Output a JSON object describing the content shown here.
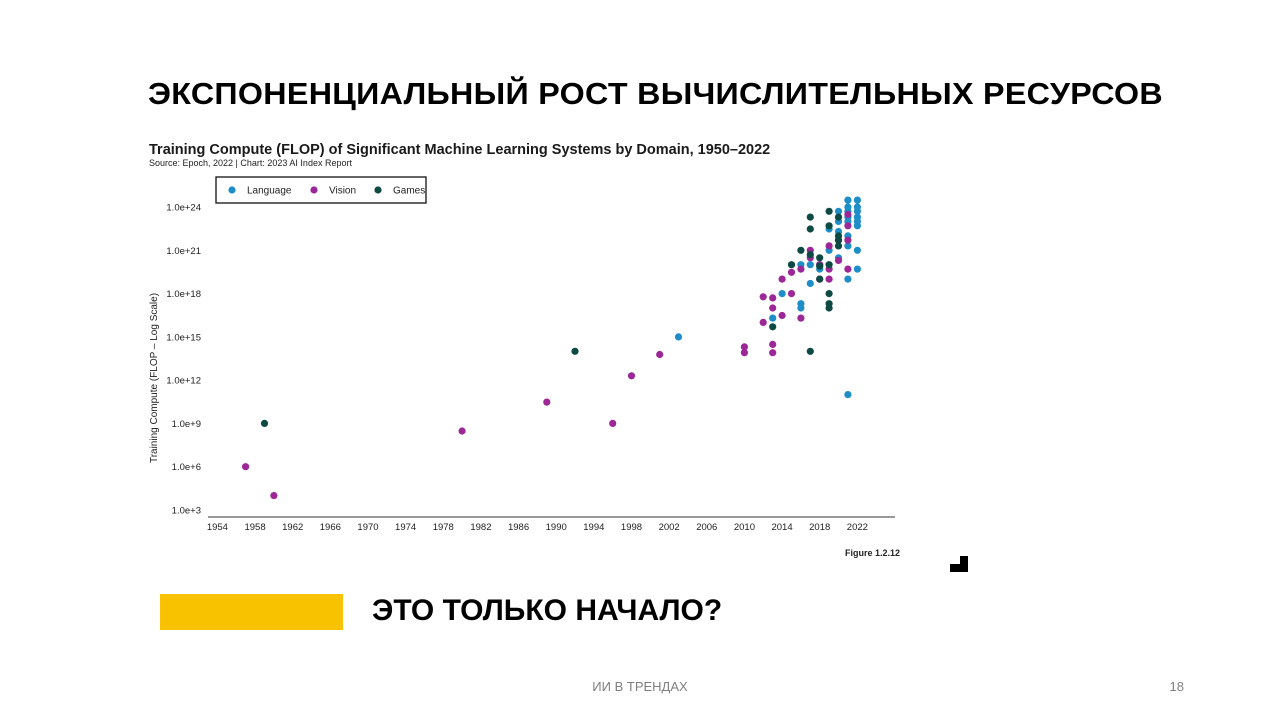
{
  "slide": {
    "title": "ЭКСПОНЕНЦИАЛЬНЫЙ РОСТ ВЫЧИСЛИТЕЛЬНЫХ РЕСУРСОВ",
    "subtitle": "ЭТО ТОЛЬКО НАЧАЛО?",
    "footer": "ИИ В ТРЕНДАХ",
    "page_number": "18",
    "accent_color": "#f9c200"
  },
  "chart_data": {
    "type": "scatter",
    "title": "Training Compute (FLOP) of Significant Machine Learning Systems by Domain, 1950–2022",
    "subtitle": "Source: Epoch, 2022 | Chart: 2023 AI Index Report",
    "ylabel": "Training Compute (FLOP – Log Scale)",
    "xlabel": "",
    "figure_label": "Figure 1.2.12",
    "y_scale": "log",
    "xlim": [
      1953,
      2026
    ],
    "ylim": [
      1000.0,
      1e+24
    ],
    "x_ticks": [
      "1954",
      "1958",
      "1962",
      "1966",
      "1970",
      "1974",
      "1978",
      "1982",
      "1986",
      "1990",
      "1994",
      "1998",
      "2002",
      "2006",
      "2010",
      "2014",
      "2018",
      "2022"
    ],
    "y_ticks": [
      "1.0e+3",
      "1.0e+6",
      "1.0e+9",
      "1.0e+12",
      "1.0e+15",
      "1.0e+18",
      "1.0e+21",
      "1.0e+24"
    ],
    "legend_position": "top-left",
    "grid": false,
    "series": [
      {
        "name": "Language",
        "color": "#1d8ec8",
        "points": [
          [
            2003,
            1000000000000000.0
          ],
          [
            2013,
            2e+16
          ],
          [
            2014,
            1e+18
          ],
          [
            2016,
            1e+20
          ],
          [
            2016,
            2e+17
          ],
          [
            2016,
            1e+17
          ],
          [
            2017,
            5e+18
          ],
          [
            2017,
            1e+20
          ],
          [
            2018,
            5e+19
          ],
          [
            2018,
            1e+20
          ],
          [
            2019,
            3e+22
          ],
          [
            2019,
            1e+21
          ],
          [
            2020,
            1e+23
          ],
          [
            2020,
            2e+22
          ],
          [
            2020,
            3e+20
          ],
          [
            2020,
            5e+23
          ],
          [
            2021,
            1e+24
          ],
          [
            2021,
            5e+23
          ],
          [
            2021,
            2e+23
          ],
          [
            2021,
            1e+22
          ],
          [
            2021,
            2e+21
          ],
          [
            2021,
            1e+19
          ],
          [
            2021,
            100000000000.0
          ],
          [
            2021,
            1e+23
          ],
          [
            2021,
            3e+24
          ],
          [
            2022,
            3e+24
          ],
          [
            2022,
            1e+24
          ],
          [
            2022,
            5e+23
          ],
          [
            2022,
            2e+23
          ],
          [
            2022,
            1e+23
          ],
          [
            2022,
            5e+22
          ],
          [
            2022,
            1e+21
          ],
          [
            2022,
            5e+19
          ]
        ]
      },
      {
        "name": "Vision",
        "color": "#9b2896",
        "points": [
          [
            1957,
            1000000.0
          ],
          [
            1960,
            10000.0
          ],
          [
            1980,
            300000000.0
          ],
          [
            1989,
            30000000000.0
          ],
          [
            1996,
            1000000000.0
          ],
          [
            1998,
            2000000000000.0
          ],
          [
            2001,
            60000000000000.0
          ],
          [
            2010,
            200000000000000.0
          ],
          [
            2010,
            80000000000000.0
          ],
          [
            2012,
            1e+16
          ],
          [
            2012,
            6e+17
          ],
          [
            2013,
            5e+17
          ],
          [
            2013,
            1e+17
          ],
          [
            2013,
            300000000000000.0
          ],
          [
            2013,
            80000000000000.0
          ],
          [
            2014,
            3e+16
          ],
          [
            2014,
            1e+19
          ],
          [
            2015,
            1e+18
          ],
          [
            2015,
            3e+19
          ],
          [
            2016,
            5e+19
          ],
          [
            2016,
            2e+16
          ],
          [
            2017,
            3e+20
          ],
          [
            2017,
            1e+21
          ],
          [
            2018,
            1e+20
          ],
          [
            2018,
            1e+19
          ],
          [
            2019,
            1e+19
          ],
          [
            2019,
            5e+19
          ],
          [
            2019,
            2e+21
          ],
          [
            2020,
            5e+21
          ],
          [
            2020,
            2e+20
          ],
          [
            2021,
            5e+22
          ],
          [
            2021,
            3e+23
          ],
          [
            2021,
            5e+19
          ],
          [
            2021,
            5e+21
          ]
        ]
      },
      {
        "name": "Games",
        "color": "#0e4a44",
        "points": [
          [
            1959,
            1000000000.0
          ],
          [
            1992,
            100000000000000.0
          ],
          [
            2013,
            5000000000000000.0
          ],
          [
            2015,
            1e+20
          ],
          [
            2016,
            1e+21
          ],
          [
            2017,
            2e+23
          ],
          [
            2017,
            3e+22
          ],
          [
            2017,
            5e+20
          ],
          [
            2017,
            100000000000000.0
          ],
          [
            2018,
            8e+19
          ],
          [
            2018,
            3e+20
          ],
          [
            2018,
            1e+19
          ],
          [
            2019,
            5e+23
          ],
          [
            2019,
            5e+22
          ],
          [
            2019,
            1e+20
          ],
          [
            2019,
            1e+18
          ],
          [
            2019,
            2e+17
          ],
          [
            2019,
            1e+17
          ],
          [
            2020,
            2e+23
          ],
          [
            2020,
            1e+22
          ],
          [
            2020,
            5e+21
          ],
          [
            2020,
            2e+21
          ]
        ]
      }
    ]
  }
}
